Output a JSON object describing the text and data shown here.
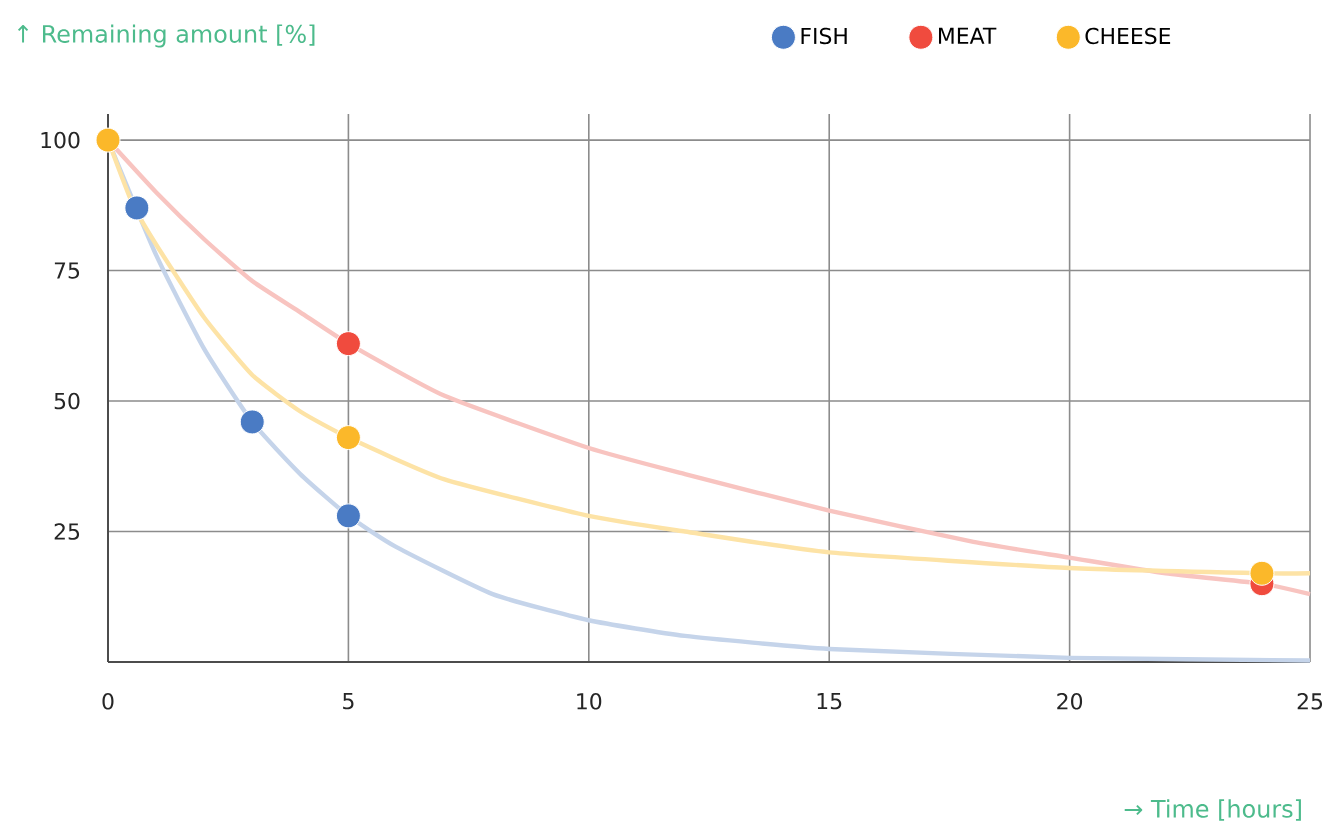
{
  "chart_data": {
    "type": "line",
    "xlabel": "→ Time [hours]",
    "ylabel": "↑ Remaining amount [%]",
    "series": [
      {
        "name": "FISH",
        "type": "scatter",
        "color": "#4a7bc4",
        "x": [
          0.6,
          3,
          5
        ],
        "values": [
          87,
          46,
          28
        ]
      },
      {
        "name": "MEAT",
        "type": "scatter",
        "color": "#f04b3e",
        "x": [
          5,
          24
        ],
        "values": [
          61,
          15
        ]
      },
      {
        "name": "CHEESE",
        "type": "scatter",
        "color": "#fbb82a",
        "x": [
          0,
          5,
          24
        ],
        "values": [
          100,
          43,
          17
        ]
      },
      {
        "color": "#c5d4ea",
        "x": [
          0,
          1,
          2,
          3,
          4,
          5,
          6,
          8,
          10,
          12,
          15,
          20,
          25
        ],
        "values": [
          100,
          78,
          60,
          46,
          36,
          28,
          22,
          13,
          8,
          5,
          2.5,
          0.8,
          0.3
        ]
      },
      {
        "color": "#f8c4c0",
        "x": [
          0,
          1,
          2,
          3,
          4,
          5,
          7,
          10,
          12,
          15,
          18,
          20,
          22,
          24,
          25
        ],
        "values": [
          100,
          90,
          81,
          73,
          67,
          61,
          51,
          41,
          36,
          29,
          23,
          20,
          17,
          15,
          13
        ]
      },
      {
        "color": "#fde3a6",
        "x": [
          0,
          0.5,
          1,
          2,
          3,
          4,
          5,
          7,
          10,
          12,
          15,
          20,
          24,
          25
        ],
        "values": [
          100,
          88,
          80,
          66,
          55,
          48,
          43,
          35,
          28,
          25,
          21,
          18,
          17,
          17
        ]
      }
    ],
    "xlim": [
      0,
      25
    ],
    "ylim": [
      0,
      105
    ],
    "xticks": [
      0,
      5,
      10,
      15,
      20,
      25
    ],
    "yticks": [
      25,
      50,
      75,
      100
    ],
    "grid": true,
    "legend": "top",
    "line_style": "solid"
  }
}
